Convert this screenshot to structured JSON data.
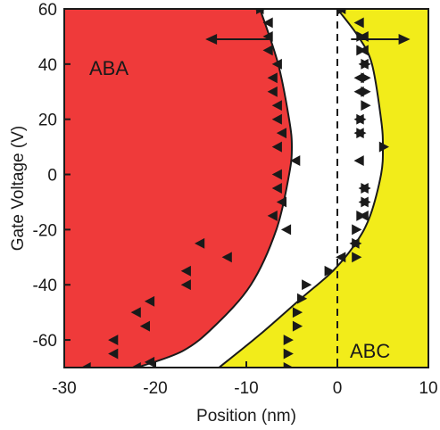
{
  "chart_data": {
    "type": "scatter",
    "title": "",
    "xlabel": "Position (nm)",
    "ylabel": "Gate Voltage (V)",
    "xlim": [
      -30,
      10
    ],
    "ylim": [
      -70,
      60
    ],
    "xticks": [
      -30,
      -20,
      -10,
      0,
      10
    ],
    "yticks": [
      -60,
      -40,
      -20,
      0,
      20,
      40,
      60
    ],
    "grid": false,
    "legend": "none",
    "regions": [
      {
        "label": "ABA",
        "color": "#ef3a3a"
      },
      {
        "label": "ABC",
        "color": "#f2ec1a"
      }
    ],
    "boundaries": [
      {
        "name": "ABA boundary",
        "points": [
          [
            -8.5,
            60
          ],
          [
            -6.5,
            40
          ],
          [
            -5.3,
            20
          ],
          [
            -5,
            10
          ],
          [
            -5.3,
            0
          ],
          [
            -6.7,
            -20
          ],
          [
            -9.5,
            -40
          ],
          [
            -13.5,
            -55
          ],
          [
            -17,
            -64
          ],
          [
            -22,
            -70
          ]
        ]
      },
      {
        "name": "ABC boundary",
        "points": [
          [
            0,
            60
          ],
          [
            2.3,
            50
          ],
          [
            3.8,
            40
          ],
          [
            4.8,
            20
          ],
          [
            5,
            10
          ],
          [
            4.8,
            0
          ],
          [
            3.6,
            -15
          ],
          [
            2,
            -25
          ],
          [
            -0.5,
            -35
          ],
          [
            -4,
            -45
          ],
          [
            -8.5,
            -58
          ],
          [
            -13,
            -70
          ]
        ]
      }
    ],
    "dashed_line_x": 0,
    "arrows": [
      {
        "direction": "left",
        "from": [
          -7.5,
          49
        ],
        "to": [
          -14.5,
          49
        ]
      },
      {
        "direction": "right",
        "from": [
          1.5,
          49
        ],
        "to": [
          8,
          49
        ]
      }
    ],
    "series": [
      {
        "marker": "left-triangle",
        "points": [
          [
            -8.5,
            60
          ],
          [
            -22,
            -70
          ],
          [
            -27.5,
            -70
          ],
          [
            -20.5,
            -68
          ],
          [
            -24.5,
            -65
          ],
          [
            -24.5,
            -60
          ],
          [
            -21,
            -55
          ],
          [
            -22,
            -50
          ],
          [
            -20.5,
            -46
          ],
          [
            -16.5,
            -40
          ],
          [
            -16.5,
            -35
          ],
          [
            -12,
            -30
          ],
          [
            -15,
            -25
          ],
          [
            -5.5,
            -20
          ],
          [
            -7,
            -15
          ],
          [
            -6,
            -10
          ],
          [
            -6.5,
            -5
          ],
          [
            -4.5,
            5
          ],
          [
            -6.5,
            0
          ],
          [
            -6.5,
            10
          ],
          [
            -6,
            15
          ],
          [
            -6.5,
            20
          ],
          [
            -6.5,
            25
          ],
          [
            -7,
            30
          ],
          [
            -7,
            35
          ],
          [
            -6.5,
            40
          ],
          [
            -7.5,
            45
          ],
          [
            -7.5,
            50
          ],
          [
            -7.5,
            55
          ],
          [
            0.5,
            60
          ],
          [
            2.5,
            55
          ],
          [
            3,
            50
          ],
          [
            3,
            45
          ],
          [
            3,
            40
          ],
          [
            2.5,
            35
          ],
          [
            2.5,
            30
          ],
          [
            2.5,
            20
          ],
          [
            2.5,
            15
          ],
          [
            2.5,
            5
          ],
          [
            3,
            -5
          ],
          [
            3,
            -10
          ],
          [
            3,
            -15
          ],
          [
            2,
            -25
          ],
          [
            0.5,
            -30
          ]
        ]
      },
      {
        "marker": "right-triangle",
        "points": [
          [
            -8.5,
            60
          ],
          [
            -5.5,
            -70
          ],
          [
            -5.5,
            -65
          ],
          [
            -5.5,
            -60
          ],
          [
            -4.5,
            -55
          ],
          [
            -4.5,
            -50
          ],
          [
            -4,
            -45
          ],
          [
            -3.5,
            -40
          ],
          [
            -1,
            -35
          ],
          [
            2,
            -30
          ],
          [
            2,
            -25
          ],
          [
            2,
            -20
          ],
          [
            2.5,
            -15
          ],
          [
            3,
            -10
          ],
          [
            3,
            -5
          ],
          [
            5,
            10
          ],
          [
            2.5,
            15
          ],
          [
            2.5,
            20
          ],
          [
            3,
            25
          ],
          [
            3,
            30
          ],
          [
            3,
            35
          ],
          [
            3,
            40
          ],
          [
            2.5,
            45
          ],
          [
            2.5,
            50
          ],
          [
            0.5,
            60
          ]
        ]
      }
    ],
    "annotations": [
      "ABA",
      "ABC"
    ]
  }
}
